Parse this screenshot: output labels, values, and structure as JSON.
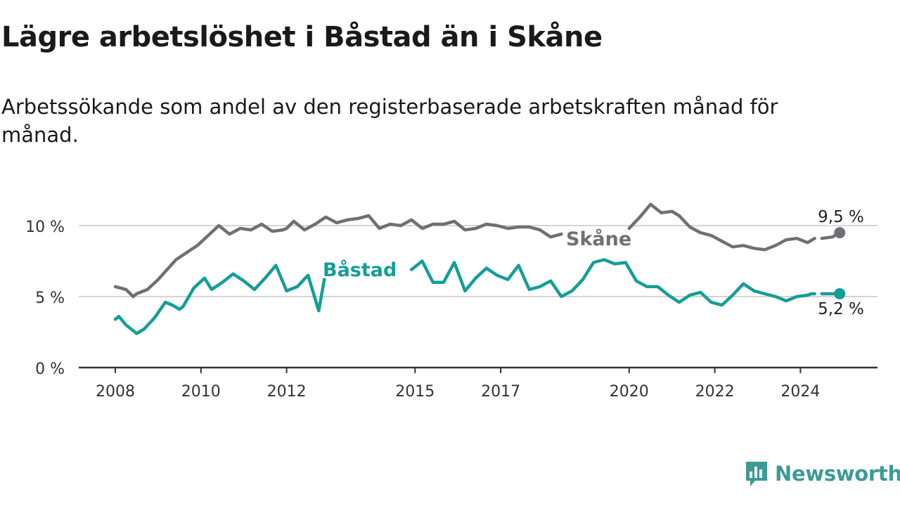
{
  "title": "Lägre arbetslöshet i Båstad än i Skåne",
  "subtitle": "Arbetssökande som andel av den registerbaserade arbetskraften månad för månad.",
  "logo": {
    "text": "Newsworthy",
    "icon": "newsworthy-bar-chart-icon",
    "color": "#3d9a95"
  },
  "colors": {
    "skane": "#706f74",
    "bastad": "#159e95",
    "grid": "#d4d4d4",
    "axis": "#333333"
  },
  "chart_data": {
    "type": "line",
    "title": "Lägre arbetslöshet i Båstad än i Skåne",
    "ylim": [
      0,
      12
    ],
    "y_ticks": [
      0,
      5,
      10
    ],
    "y_tick_labels": [
      "0 %",
      "5 %",
      "10 %"
    ],
    "x_ticks": [
      2008,
      2010,
      2012,
      2015,
      2017,
      2020,
      2022,
      2024
    ],
    "x_tick_labels": [
      "2008",
      "2010",
      "2012",
      "2015",
      "2017",
      "2020",
      "2022",
      "2024"
    ],
    "grid": "horizontal",
    "x_range": [
      "2008-01",
      "2024-12"
    ],
    "series": [
      {
        "name": "Skåne",
        "label": "Skåne",
        "last_value_label": "9,5 %",
        "gaps": [
          [
            "2018-07",
            "2019-12"
          ],
          [
            "2024-06",
            "2024-06"
          ]
        ],
        "x": [
          "2008-01",
          "2008-04",
          "2008-06",
          "2008-07",
          "2008-10",
          "2009-01",
          "2009-06",
          "2009-12",
          "2010-03",
          "2010-06",
          "2010-09",
          "2010-12",
          "2011-03",
          "2011-06",
          "2011-09",
          "2011-12",
          "2012-01",
          "2012-03",
          "2012-06",
          "2012-09",
          "2012-12",
          "2013-03",
          "2013-06",
          "2013-09",
          "2013-12",
          "2014-03",
          "2014-06",
          "2014-09",
          "2014-12",
          "2015-03",
          "2015-06",
          "2015-09",
          "2015-12",
          "2016-03",
          "2016-06",
          "2016-09",
          "2016-12",
          "2017-03",
          "2017-06",
          "2017-09",
          "2017-12",
          "2018-03",
          "2018-06",
          "2020-01",
          "2020-04",
          "2020-07",
          "2020-10",
          "2021-01",
          "2021-03",
          "2021-06",
          "2021-09",
          "2021-12",
          "2022-03",
          "2022-06",
          "2022-09",
          "2022-12",
          "2023-03",
          "2023-06",
          "2023-09",
          "2023-12",
          "2024-03",
          "2024-05",
          "2024-07",
          "2024-10",
          "2024-12"
        ],
        "values": [
          5.7,
          5.5,
          5.0,
          5.2,
          5.5,
          6.2,
          7.6,
          8.6,
          9.3,
          10.0,
          9.4,
          9.8,
          9.7,
          10.1,
          9.6,
          9.7,
          9.8,
          10.3,
          9.7,
          10.1,
          10.6,
          10.2,
          10.4,
          10.5,
          10.7,
          9.8,
          10.1,
          10.0,
          10.4,
          9.8,
          10.1,
          10.1,
          10.3,
          9.7,
          9.8,
          10.1,
          10.0,
          9.8,
          9.9,
          9.9,
          9.7,
          9.2,
          9.4,
          9.8,
          10.6,
          11.5,
          10.9,
          11.0,
          10.7,
          9.9,
          9.5,
          9.3,
          8.9,
          8.5,
          8.6,
          8.4,
          8.3,
          8.6,
          9.0,
          9.1,
          8.8,
          9.1,
          9.1,
          9.2,
          9.5
        ]
      },
      {
        "name": "Båstad",
        "label": "Båstad",
        "last_value_label": "5,2 %",
        "gaps": [
          [
            "2013-01",
            "2014-11"
          ],
          [
            "2024-06",
            "2024-06"
          ]
        ],
        "x": [
          "2008-01",
          "2008-02",
          "2008-04",
          "2008-07",
          "2008-09",
          "2008-12",
          "2009-03",
          "2009-05",
          "2009-07",
          "2009-08",
          "2009-11",
          "2010-02",
          "2010-04",
          "2010-07",
          "2010-10",
          "2011-01",
          "2011-04",
          "2011-07",
          "2011-10",
          "2012-01",
          "2012-04",
          "2012-07",
          "2012-10",
          "2012-12",
          "2014-12",
          "2015-03",
          "2015-06",
          "2015-09",
          "2015-12",
          "2016-03",
          "2016-06",
          "2016-09",
          "2016-12",
          "2017-03",
          "2017-06",
          "2017-09",
          "2017-12",
          "2018-03",
          "2018-06",
          "2018-09",
          "2018-12",
          "2019-03",
          "2019-06",
          "2019-09",
          "2019-12",
          "2020-03",
          "2020-06",
          "2020-09",
          "2020-12",
          "2021-03",
          "2021-06",
          "2021-09",
          "2021-12",
          "2022-03",
          "2022-06",
          "2022-09",
          "2022-12",
          "2023-03",
          "2023-06",
          "2023-09",
          "2023-12",
          "2024-03",
          "2024-04",
          "2024-05",
          "2024-07",
          "2024-09",
          "2024-12"
        ],
        "values": [
          3.4,
          3.6,
          3.0,
          2.4,
          2.7,
          3.5,
          4.6,
          4.4,
          4.1,
          4.3,
          5.6,
          6.3,
          5.5,
          6.0,
          6.6,
          6.1,
          5.5,
          6.3,
          7.2,
          5.4,
          5.7,
          6.5,
          4.0,
          6.8,
          6.9,
          7.5,
          6.0,
          6.0,
          7.4,
          5.4,
          6.3,
          7.0,
          6.5,
          6.2,
          7.2,
          5.5,
          5.7,
          6.1,
          5.0,
          5.4,
          6.2,
          7.4,
          7.6,
          7.3,
          7.4,
          6.1,
          5.7,
          5.7,
          5.1,
          4.6,
          5.1,
          5.3,
          4.6,
          4.4,
          5.1,
          5.9,
          5.4,
          5.2,
          5.0,
          4.7,
          5.0,
          5.1,
          5.2,
          5.2,
          5.2,
          5.2,
          5.2
        ]
      }
    ]
  }
}
